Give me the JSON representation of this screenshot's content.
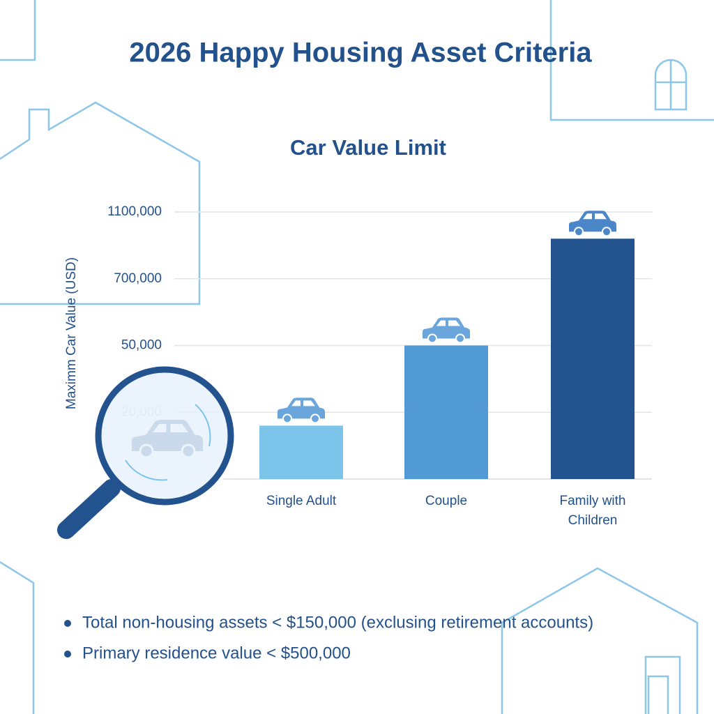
{
  "title": "2026 Happy Housing Asset Criteria",
  "chart_data": {
    "type": "bar",
    "title": "Car Value Limit",
    "y_label": "Maximm Car Value (USD)",
    "categories": [
      "Single Adult",
      "Couple",
      "Family with\nChildren"
    ],
    "values": [
      16000,
      50000,
      940000
    ],
    "colors": [
      "#7dc4ea",
      "#519ad6",
      "#23538f"
    ],
    "ylim": [
      0,
      1100000
    ],
    "yticks": [
      {
        "value": 20000,
        "label": "20,000"
      },
      {
        "value": 50000,
        "label": "50,000"
      },
      {
        "value": 700000,
        "label": "700,000"
      },
      {
        "value": 1100000,
        "label": "1100,000"
      }
    ],
    "grid": true
  },
  "notes": [
    "Total non-housing assets < $150,000 (exclusing retirement accounts)",
    "Primary residence value < $500,000"
  ]
}
